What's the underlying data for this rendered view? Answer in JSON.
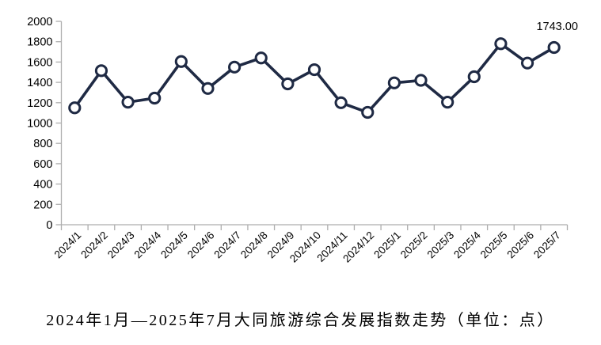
{
  "colors": {
    "line": "#1f2a44",
    "marker_fill": "#ffffff",
    "axis": "#aeaeae",
    "text": "#000000",
    "background": "#ffffff"
  },
  "chart_data": {
    "type": "line",
    "title": "2024年1月—2025年7月大同旅游综合发展指数走势（单位：点）",
    "xlabel": "",
    "ylabel": "",
    "ylim": [
      0,
      2000
    ],
    "ytick_step": 200,
    "ytick_labels": [
      "2000",
      "1800",
      "1600",
      "1400",
      "1200",
      "1000",
      "800",
      "600",
      "400",
      "200",
      "0"
    ],
    "grid": false,
    "legend": "none",
    "marker": "open-circle",
    "categories": [
      "2024/1",
      "2024/2",
      "2024/3",
      "2024/4",
      "2024/5",
      "2024/6",
      "2024/7",
      "2024/8",
      "2024/9",
      "2024/10",
      "2024/11",
      "2024/12",
      "2025/1",
      "2025/2",
      "2025/3",
      "2025/4",
      "2025/5",
      "2025/6",
      "2025/7"
    ],
    "values": [
      1150,
      1515,
      1205,
      1245,
      1605,
      1340,
      1550,
      1640,
      1385,
      1525,
      1200,
      1105,
      1395,
      1420,
      1205,
      1455,
      1780,
      1590,
      1743
    ],
    "annotation": {
      "text": "1743.00",
      "index": 18
    }
  }
}
